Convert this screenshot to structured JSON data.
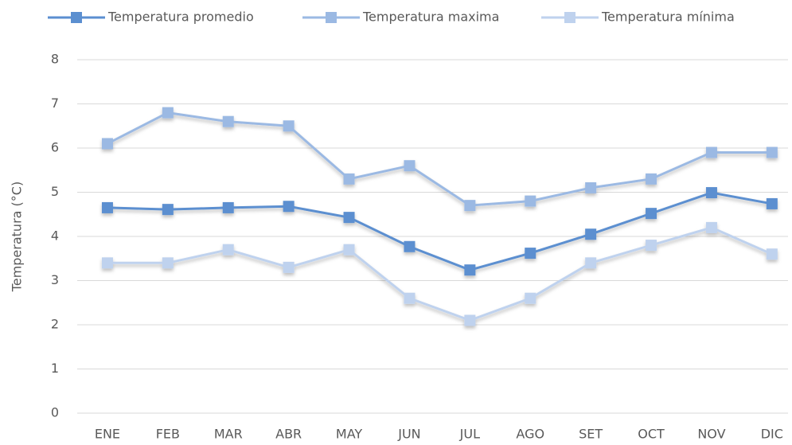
{
  "chart_data": {
    "type": "line",
    "y_label": "Temperatura (°C)",
    "categories": [
      "ENE",
      "FEB",
      "MAR",
      "ABR",
      "MAY",
      "JUN",
      "JUL",
      "AGO",
      "SET",
      "OCT",
      "NOV",
      "DIC"
    ],
    "series": [
      {
        "name": "Temperatura promedio",
        "color": "#5b8fd0",
        "values": [
          4.65,
          4.61,
          4.65,
          4.68,
          4.43,
          3.77,
          3.24,
          3.62,
          4.05,
          4.52,
          4.99,
          4.74
        ]
      },
      {
        "name": "Temperatura maxima",
        "color": "#9bb9e3",
        "values": [
          6.1,
          6.8,
          6.6,
          6.5,
          5.3,
          5.6,
          4.7,
          4.8,
          5.1,
          5.3,
          5.9,
          5.9
        ]
      },
      {
        "name": "Temperatura mínima",
        "color": "#bfd2ee",
        "values": [
          3.4,
          3.4,
          3.7,
          3.3,
          3.7,
          2.6,
          2.1,
          2.6,
          3.4,
          3.8,
          4.2,
          3.6
        ]
      }
    ],
    "ylim": [
      0,
      8
    ],
    "yticks": [
      0,
      1,
      2,
      3,
      4,
      5,
      6,
      7,
      8
    ],
    "grid": true,
    "legend": "top"
  }
}
